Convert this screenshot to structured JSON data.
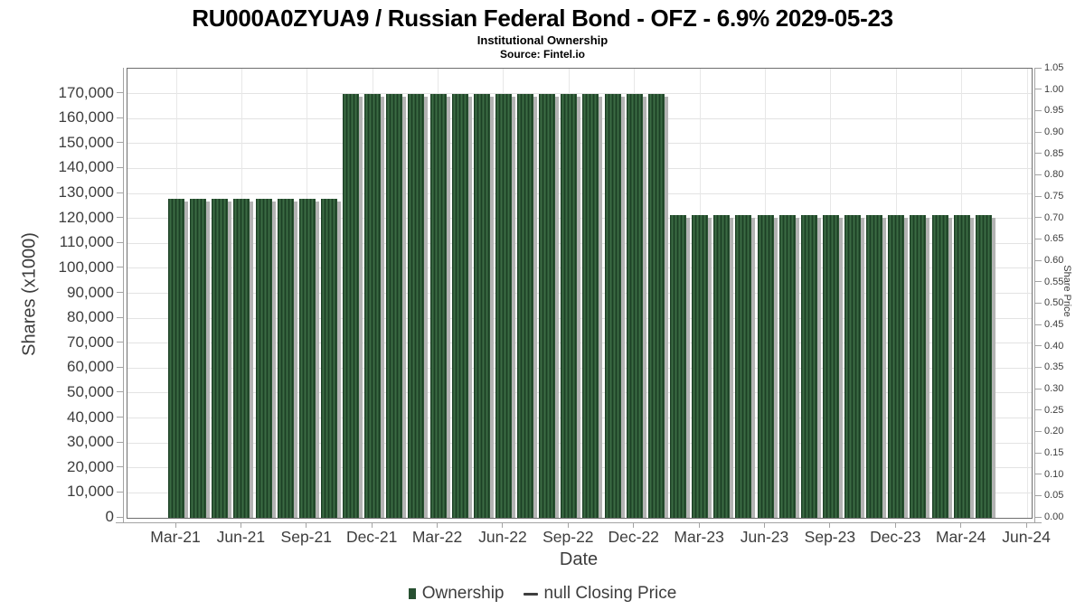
{
  "header": {
    "title": "RU000A0ZYUA9 / Russian Federal Bond - OFZ - 6.9% 2029-05-23",
    "subtitle": "Institutional Ownership",
    "source": "Source: Fintel.io"
  },
  "legend": {
    "bar_label": "Ownership",
    "line_label": "null Closing Price"
  },
  "colors": {
    "bar_green": "#2d5735",
    "bar_stripe_dark": "#1c4025",
    "bar_stripe_light": "#3a6a43",
    "bar_shadow": "#b3b3b3",
    "legend_swatch": "#275031",
    "gridline": "#e3e3e3",
    "axis_line": "#6e6e6e",
    "text": "#3d3d3d"
  },
  "chart_data": {
    "type": "bar",
    "title": "RU000A0ZYUA9 / Russian Federal Bond - OFZ - 6.9% 2029-05-23",
    "subtitle": "Institutional Ownership",
    "source": "Source: Fintel.io",
    "xlabel": "Date",
    "grid": true,
    "legend_position": "bottom",
    "x_tick_labels": [
      "Mar-21",
      "Jun-21",
      "Sep-21",
      "Dec-21",
      "Mar-22",
      "Jun-22",
      "Sep-22",
      "Dec-22",
      "Mar-23",
      "Jun-23",
      "Sep-23",
      "Dec-23",
      "Mar-24",
      "Jun-24"
    ],
    "y_axis_left": {
      "label": "Shares (x1000)",
      "ticks": [
        "0",
        "10,000",
        "20,000",
        "30,000",
        "40,000",
        "50,000",
        "60,000",
        "70,000",
        "80,000",
        "90,000",
        "100,000",
        "110,000",
        "120,000",
        "130,000",
        "140,000",
        "150,000",
        "160,000",
        "170,000"
      ],
      "range": [
        0,
        180000
      ]
    },
    "y_axis_right": {
      "label": "Share Price",
      "ticks": [
        "0.00",
        "0.05",
        "0.10",
        "0.15",
        "0.20",
        "0.25",
        "0.30",
        "0.35",
        "0.40",
        "0.45",
        "0.50",
        "0.55",
        "0.60",
        "0.65",
        "0.70",
        "0.75",
        "0.80",
        "0.85",
        "0.90",
        "0.95",
        "1.00",
        "1.05"
      ],
      "range": [
        0,
        1.05
      ]
    },
    "series": [
      {
        "name": "Ownership",
        "type": "bar",
        "color": "#2d5735",
        "points": [
          {
            "date": "Mar-21",
            "shares_x1000": 128000
          },
          {
            "date": "Apr-21",
            "shares_x1000": 128000
          },
          {
            "date": "May-21",
            "shares_x1000": 128000
          },
          {
            "date": "Jun-21",
            "shares_x1000": 128000
          },
          {
            "date": "Jul-21",
            "shares_x1000": 128000
          },
          {
            "date": "Aug-21",
            "shares_x1000": 128000
          },
          {
            "date": "Sep-21",
            "shares_x1000": 128000
          },
          {
            "date": "Oct-21",
            "shares_x1000": 128000
          },
          {
            "date": "Nov-21",
            "shares_x1000": 170000
          },
          {
            "date": "Dec-21",
            "shares_x1000": 170000
          },
          {
            "date": "Jan-22",
            "shares_x1000": 170000
          },
          {
            "date": "Feb-22",
            "shares_x1000": 170000
          },
          {
            "date": "Mar-22",
            "shares_x1000": 170000
          },
          {
            "date": "Apr-22",
            "shares_x1000": 170000
          },
          {
            "date": "May-22",
            "shares_x1000": 170000
          },
          {
            "date": "Jun-22",
            "shares_x1000": 170000
          },
          {
            "date": "Jul-22",
            "shares_x1000": 170000
          },
          {
            "date": "Aug-22",
            "shares_x1000": 170000
          },
          {
            "date": "Sep-22",
            "shares_x1000": 170000
          },
          {
            "date": "Oct-22",
            "shares_x1000": 170000
          },
          {
            "date": "Nov-22",
            "shares_x1000": 170000
          },
          {
            "date": "Dec-22",
            "shares_x1000": 170000
          },
          {
            "date": "Jan-23",
            "shares_x1000": 170000
          },
          {
            "date": "Feb-23",
            "shares_x1000": 121500
          },
          {
            "date": "Mar-23",
            "shares_x1000": 121500
          },
          {
            "date": "Apr-23",
            "shares_x1000": 121500
          },
          {
            "date": "May-23",
            "shares_x1000": 121500
          },
          {
            "date": "Jun-23",
            "shares_x1000": 121500
          },
          {
            "date": "Jul-23",
            "shares_x1000": 121500
          },
          {
            "date": "Aug-23",
            "shares_x1000": 121500
          },
          {
            "date": "Sep-23",
            "shares_x1000": 121500
          },
          {
            "date": "Oct-23",
            "shares_x1000": 121500
          },
          {
            "date": "Nov-23",
            "shares_x1000": 121500
          },
          {
            "date": "Dec-23",
            "shares_x1000": 121500
          },
          {
            "date": "Jan-24",
            "shares_x1000": 121500
          },
          {
            "date": "Feb-24",
            "shares_x1000": 121500
          },
          {
            "date": "Mar-24",
            "shares_x1000": 121500
          },
          {
            "date": "Apr-24",
            "shares_x1000": 121500
          }
        ]
      },
      {
        "name": "null Closing Price",
        "type": "line",
        "color": "#3f3f3f",
        "points": []
      }
    ]
  }
}
